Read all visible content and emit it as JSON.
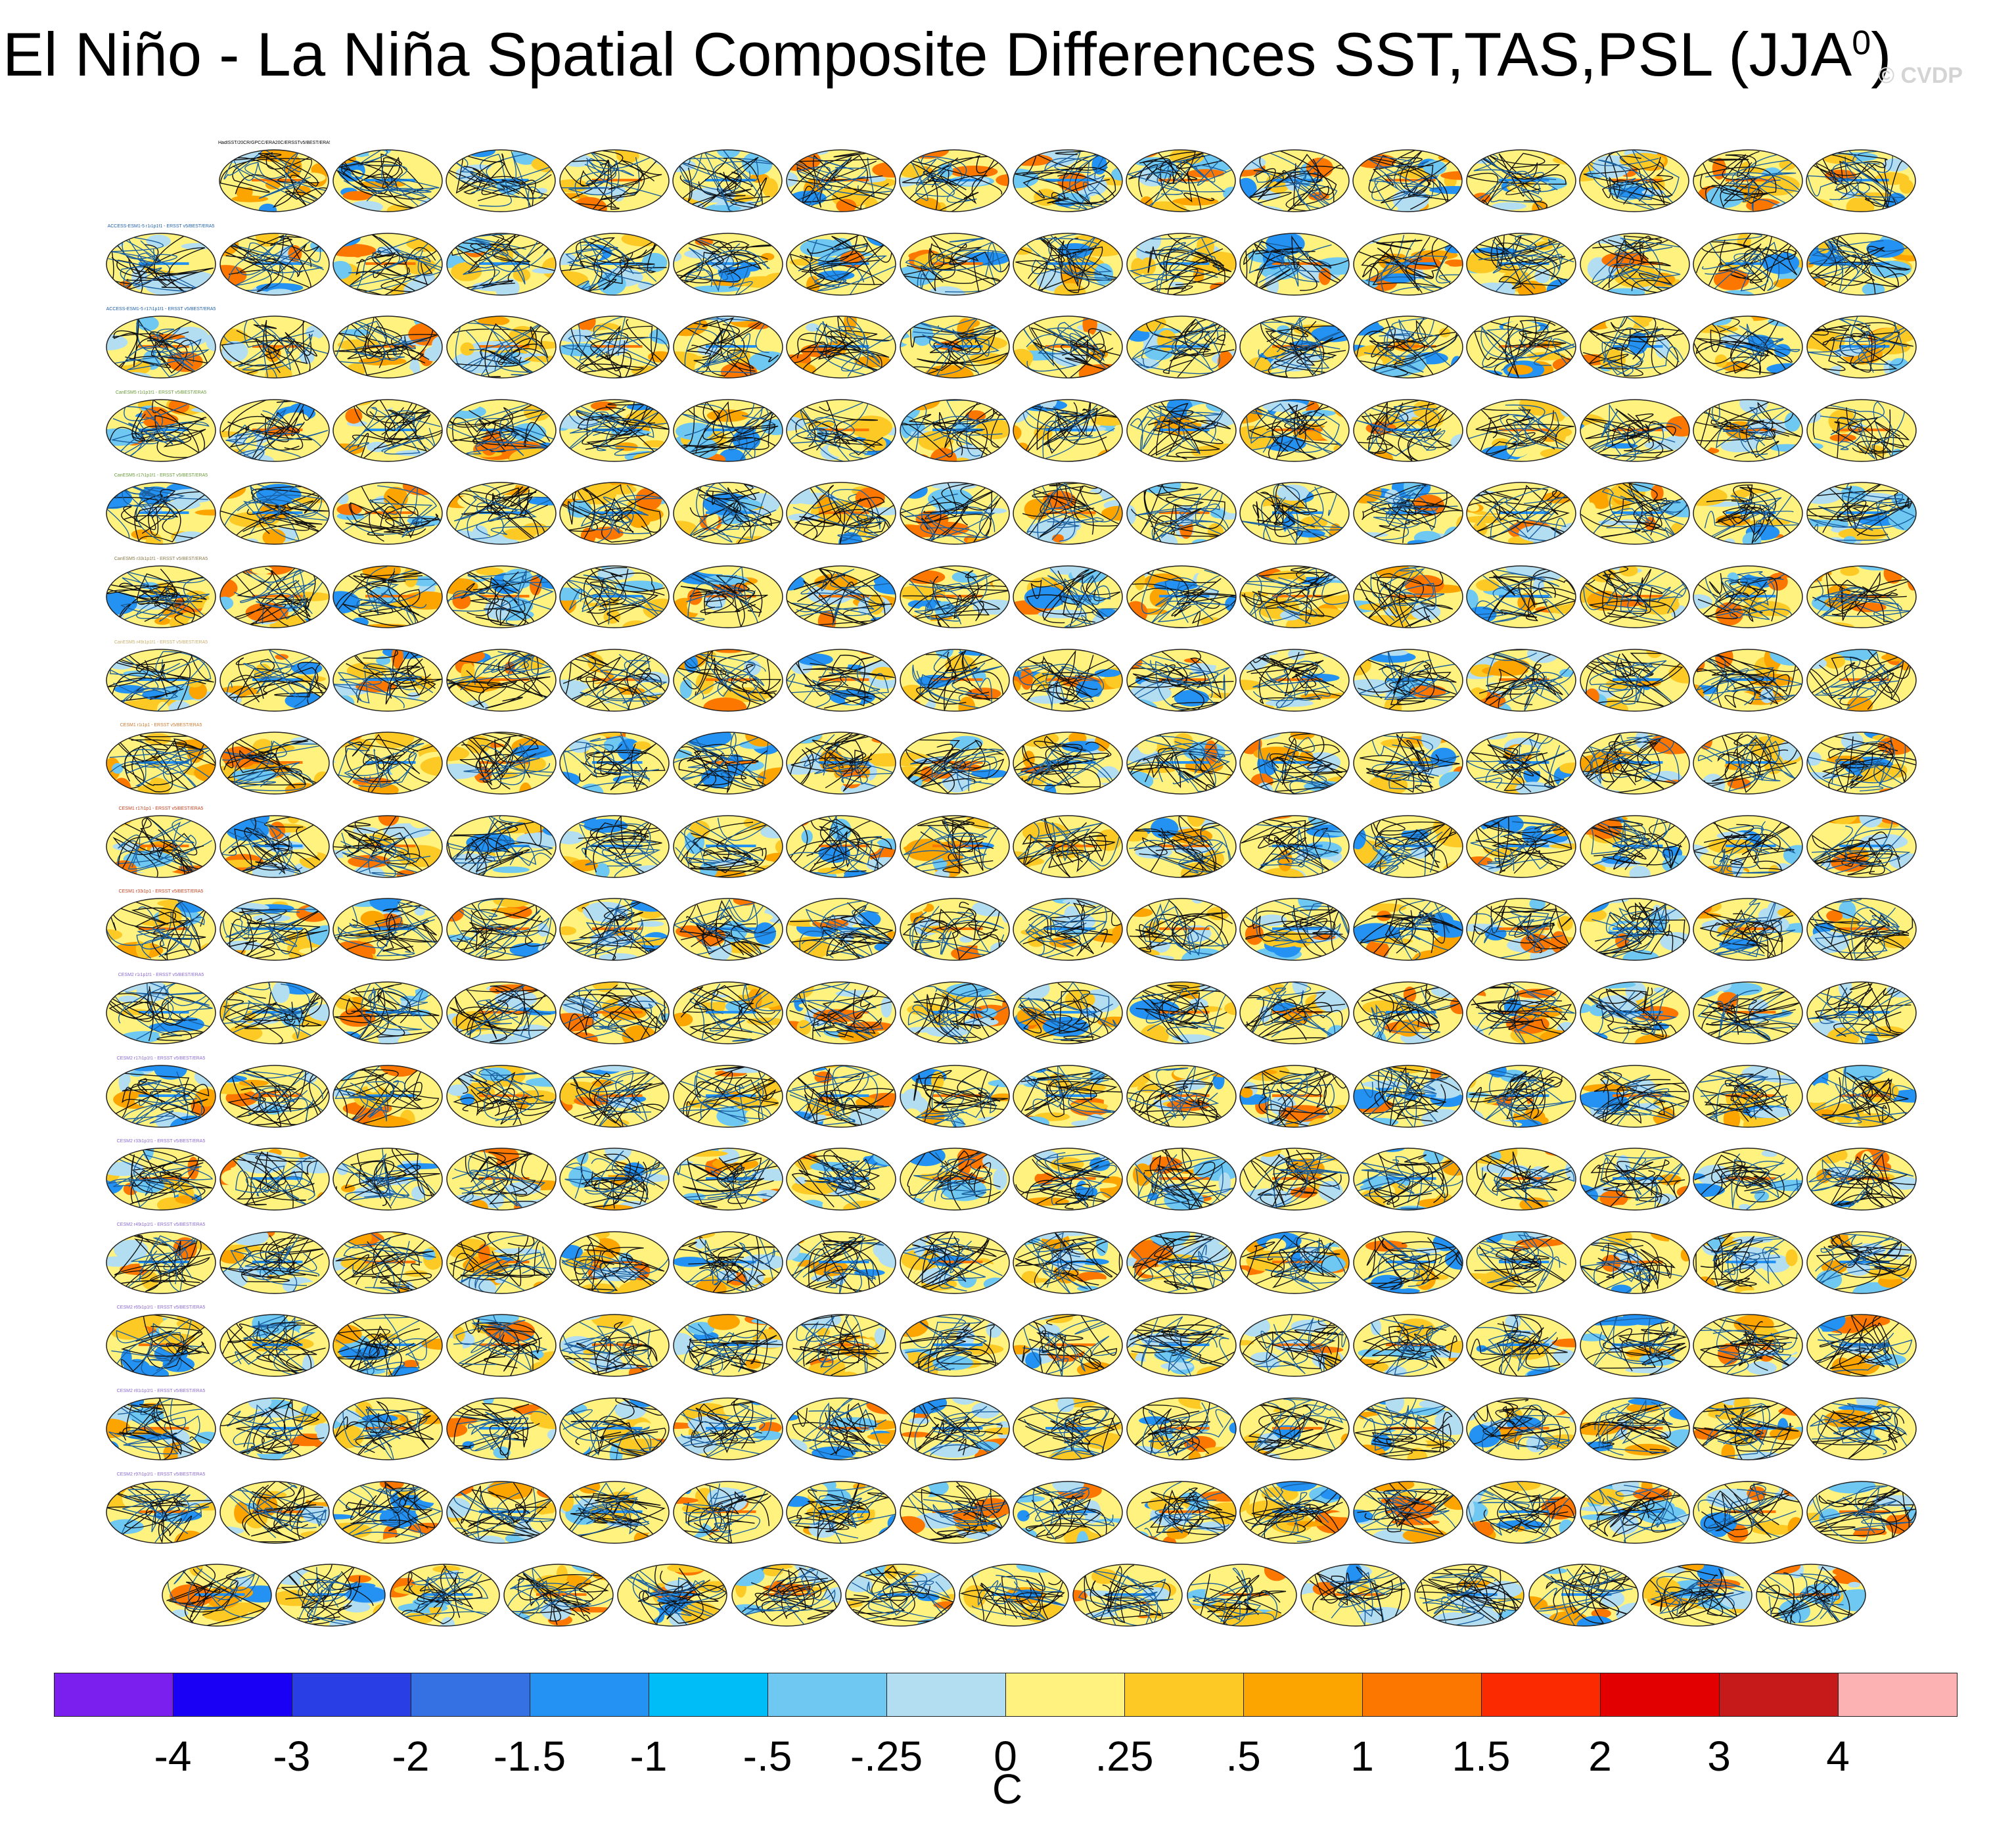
{
  "title": {
    "text": "El Niño - La Niña Spatial Composite Differences SST,TAS,PSL (JJA",
    "superscript": "0",
    "close": ")"
  },
  "watermark": "© CVDP",
  "chart_data": {
    "type": "heatmap",
    "title": "El Niño - La Niña Spatial Composite Differences SST,TAS,PSL (JJA0)",
    "units": "C",
    "colorbar": {
      "tick_labels": [
        "-4",
        "-3",
        "-2",
        "-1.5",
        "-1",
        "-.5",
        "-.25",
        "0",
        ".25",
        ".5",
        "1",
        "1.5",
        "2",
        "3",
        "4"
      ],
      "levels": [
        -4,
        -3,
        -2,
        -1.5,
        -1,
        -0.5,
        -0.25,
        0,
        0.25,
        0.5,
        1,
        1.5,
        2,
        3,
        4
      ],
      "colors": [
        "#7b1fee",
        "#1a00f5",
        "#2a3ee6",
        "#3571e3",
        "#2492f2",
        "#00bdf8",
        "#6ec8f2",
        "#b3def2",
        "#fff27f",
        "#fcc925",
        "#fca400",
        "#fc7700",
        "#fc2a00",
        "#e30000",
        "#c61a1a",
        "#fcb2b2"
      ]
    },
    "panels": {
      "rows": [
        {
          "count": 15,
          "first_label": "HadISST/20CR/GPCC/ERA20C/ERSSTv5/BEST/ERA5"
        },
        {
          "count": 16,
          "first_label": "ACCESS-ESM1-5 r1i1p1f1 - ERSST v5/BEST/ERA5"
        },
        {
          "count": 16,
          "first_label": "ACCESS-ESM1-5 r17i1p1f1 - ERSST v5/BEST/ERA5"
        },
        {
          "count": 16,
          "first_label": "CanESM5 r1i1p1f1 - ERSST v5/BEST/ERA5"
        },
        {
          "count": 16,
          "first_label": "CanESM5 r17i1p1f1 - ERSST v5/BEST/ERA5"
        },
        {
          "count": 16,
          "first_label": "CanESM5 r33i1p1f1 - ERSST v5/BEST/ERA5"
        },
        {
          "count": 16,
          "first_label": "CanESM5 r49i1p1f1 - ERSST v5/BEST/ERA5"
        },
        {
          "count": 16,
          "first_label": "CESM1 r1i1p1 - ERSST v5/BEST/ERA5"
        },
        {
          "count": 16,
          "first_label": "CESM1 r17i1p1 - ERSST v5/BEST/ERA5"
        },
        {
          "count": 16,
          "first_label": "CESM1 r33i1p1 - ERSST v5/BEST/ERA5"
        },
        {
          "count": 16,
          "first_label": "CESM2 r1i1p1f1 - ERSST v5/BEST/ERA5"
        },
        {
          "count": 16,
          "first_label": "CESM2 r17i1p1f1 - ERSST v5/BEST/ERA5"
        },
        {
          "count": 16,
          "first_label": "CESM2 r33i1p1f1 - ERSST v5/BEST/ERA5"
        },
        {
          "count": 16,
          "first_label": "CESM2 r49i1p1f1 - ERSST v5/BEST/ERA5"
        },
        {
          "count": 16,
          "first_label": "CESM2 r65i1p1f1 - ERSST v5/BEST/ERA5"
        },
        {
          "count": 16,
          "first_label": "CESM2 r81i1p1f1 - ERSST v5/BEST/ERA5"
        },
        {
          "count": 16,
          "first_label": "CESM2 r97i1p1f1 - ERSST v5/BEST/ERA5"
        },
        {
          "count": 15,
          "first_label": ""
        }
      ],
      "label_colors": [
        "#000000",
        "#1f5fa8",
        "#1f5fa8",
        "#6a9a3a",
        "#6a9a3a",
        "#8a7a4a",
        "#c8b070",
        "#c87a30",
        "#c04020",
        "#c04020",
        "#8a6ad0",
        "#8a6ad0",
        "#8a6ad0",
        "#8a6ad0",
        "#8a6ad0",
        "#8a6ad0",
        "#8a6ad0",
        "#8a6ad0"
      ]
    }
  }
}
